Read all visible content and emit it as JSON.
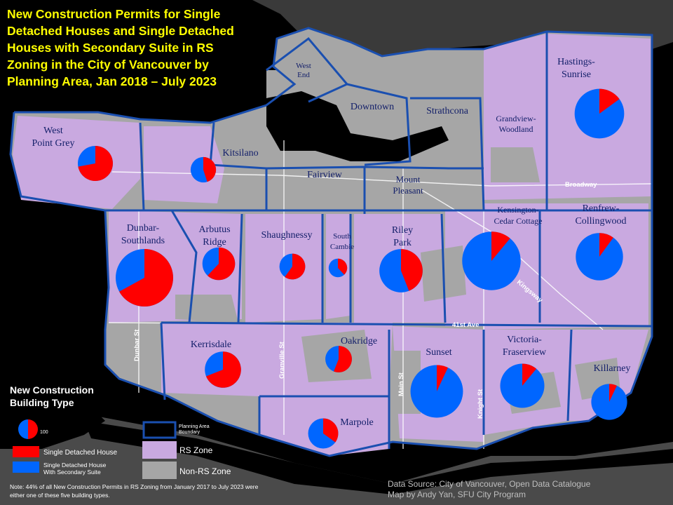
{
  "title": "New Construction Permits for Single Detached Houses and Single Detached Houses with Secondary Suite in RS Zoning in the City of Vancouver by Planning Area, Jan 2018 – July 2023",
  "colors": {
    "single_detached": "#ff0000",
    "with_secondary_suite": "#0066ff",
    "rs_zone": "#c9a9e0",
    "non_rs_zone": "#a6a6a6",
    "boundary": "#1a4fb0",
    "water": "#000000"
  },
  "planning_areas": [
    {
      "id": "west-end",
      "label": "West\nEnd"
    },
    {
      "id": "downtown",
      "label": "Downtown"
    },
    {
      "id": "strathcona",
      "label": "Strathcona"
    },
    {
      "id": "grandview-woodland",
      "label": "Grandview-\nWoodland"
    },
    {
      "id": "hastings-sunrise",
      "label": "Hastings-\nSunrise"
    },
    {
      "id": "west-point-grey",
      "label": "West\nPoint Grey"
    },
    {
      "id": "kitsilano",
      "label": "Kitsilano"
    },
    {
      "id": "fairview",
      "label": "Fairview"
    },
    {
      "id": "mount-pleasant",
      "label": "Mount\nPleasant"
    },
    {
      "id": "kensington-cedar-cottage",
      "label": "Kensington-\nCedar Cottage"
    },
    {
      "id": "renfrew-collingwood",
      "label": "Renfrew-\nCollingwood"
    },
    {
      "id": "dunbar-southlands",
      "label": "Dunbar-\nSouthlands"
    },
    {
      "id": "arbutus-ridge",
      "label": "Arbutus\nRidge"
    },
    {
      "id": "shaughnessy",
      "label": "Shaughnessy"
    },
    {
      "id": "south-cambie",
      "label": "South\nCambie"
    },
    {
      "id": "riley-park",
      "label": "Riley\nPark"
    },
    {
      "id": "kerrisdale",
      "label": "Kerrisdale"
    },
    {
      "id": "oakridge",
      "label": "Oakridge"
    },
    {
      "id": "sunset",
      "label": "Sunset"
    },
    {
      "id": "victoria-fraserview",
      "label": "Victoria-\nFraserview"
    },
    {
      "id": "killarney",
      "label": "Killarney"
    },
    {
      "id": "marpole",
      "label": "Marpole"
    }
  ],
  "pie_charts": [
    {
      "area": "west-point-grey",
      "total": 61,
      "single_detached_share": 0.72
    },
    {
      "area": "kitsilano",
      "total": 32,
      "single_detached_share": 0.45
    },
    {
      "area": "hastings-sunrise",
      "total": 122,
      "single_detached_share": 0.15
    },
    {
      "area": "dunbar-southlands",
      "total": 164,
      "single_detached_share": 0.67
    },
    {
      "area": "arbutus-ridge",
      "total": 53,
      "single_detached_share": 0.62
    },
    {
      "area": "shaughnessy",
      "total": 33,
      "single_detached_share": 0.6
    },
    {
      "area": "south-cambie",
      "total": 17,
      "single_detached_share": 0.38
    },
    {
      "area": "riley-park",
      "total": 93,
      "single_detached_share": 0.44
    },
    {
      "area": "kensington-cedar-cottage",
      "total": 170,
      "single_detached_share": 0.11
    },
    {
      "area": "renfrew-collingwood",
      "total": 111,
      "single_detached_share": 0.1
    },
    {
      "area": "kerrisdale",
      "total": 65,
      "single_detached_share": 0.69
    },
    {
      "area": "oakridge",
      "total": 35,
      "single_detached_share": 0.56
    },
    {
      "area": "sunset",
      "total": 137,
      "single_detached_share": 0.07
    },
    {
      "area": "victoria-fraserview",
      "total": 97,
      "single_detached_share": 0.11
    },
    {
      "area": "killarney",
      "total": 64,
      "single_detached_share": 0.07
    },
    {
      "area": "marpole",
      "total": 45,
      "single_detached_share": 0.35
    }
  ],
  "streets": {
    "broadway": "Broadway",
    "kingsway": "Kingsway",
    "forty_first_ave": "41st Ave",
    "dunbar": "Dunbar St",
    "granville": "Granville St",
    "main": "Main St",
    "knight": "Knight St"
  },
  "legend": {
    "title": "New Construction\nBuilding Type",
    "size_ref": "100",
    "single_detached": "Single Detached House",
    "with_suite": "Single Detached House\nWith Secondary Suite",
    "boundary": "Planning Area\nBoundary",
    "rs_zone": "RS Zone",
    "non_rs_zone": "Non-RS Zone"
  },
  "note": "Note: 44% of all New Construction Permits in RS Zoning from January 2017 to July 2023 were either one of these five building types.",
  "source": "Data Source: City of Vancouver,  Open Data Catalogue\nMap by Andy Yan, SFU City Program"
}
